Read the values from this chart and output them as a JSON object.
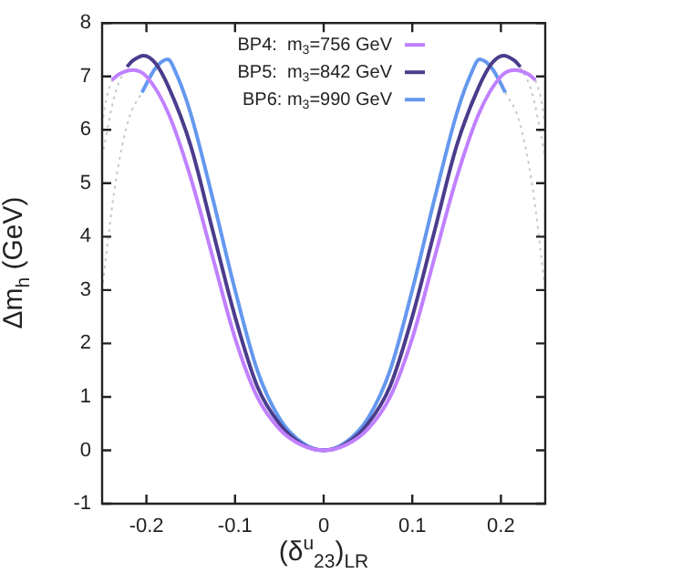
{
  "chart_data": {
    "type": "line",
    "xlabel": "(δ$^{u}$$_{23}$)$_{LR}$",
    "ylabel": "Δm$_{h}$ (GeV)",
    "xlim": [
      -0.25,
      0.25
    ],
    "xticks": [
      -0.2,
      -0.1,
      0,
      0.1,
      0.2
    ],
    "ylim": [
      -1,
      8
    ],
    "yticks": [
      -1,
      0,
      1,
      2,
      3,
      4,
      5,
      6,
      7,
      8
    ],
    "grid": false,
    "legend": "top right",
    "marker": "none",
    "line_style": "solid",
    "series": [
      {
        "name": "BP4:  m$_{3}$=756 GeV",
        "color": "#c080ff",
        "x": [
          -0.239,
          -0.23,
          -0.215,
          -0.2,
          -0.175,
          -0.15,
          -0.125,
          -0.1,
          -0.075,
          -0.05,
          -0.025,
          0,
          0.025,
          0.05,
          0.075,
          0.1,
          0.125,
          0.15,
          0.175,
          0.2,
          0.215,
          0.23,
          0.239
        ],
        "values": [
          6.93,
          7.05,
          7.12,
          7.0,
          6.3,
          5.1,
          3.6,
          2.1,
          1.0,
          0.4,
          0.1,
          0,
          0.1,
          0.4,
          1.0,
          2.1,
          3.6,
          5.1,
          6.3,
          7.0,
          7.12,
          7.05,
          6.93
        ]
      },
      {
        "name": "BP5:  m$_{3}$=842 GeV",
        "color": "#4b3c8c",
        "x": [
          -0.222,
          -0.215,
          -0.203,
          -0.19,
          -0.175,
          -0.15,
          -0.125,
          -0.1,
          -0.075,
          -0.05,
          -0.025,
          0,
          0.025,
          0.05,
          0.075,
          0.1,
          0.125,
          0.15,
          0.175,
          0.19,
          0.203,
          0.215,
          0.222
        ],
        "values": [
          7.18,
          7.3,
          7.39,
          7.25,
          6.8,
          5.7,
          4.1,
          2.5,
          1.2,
          0.5,
          0.12,
          0,
          0.12,
          0.5,
          1.2,
          2.5,
          4.1,
          5.7,
          6.8,
          7.25,
          7.39,
          7.3,
          7.18
        ]
      },
      {
        "name": "BP6: m$_{3}$=990 GeV",
        "color": "#6498ee",
        "x": [
          -0.205,
          -0.19,
          -0.176,
          -0.165,
          -0.15,
          -0.125,
          -0.1,
          -0.075,
          -0.05,
          -0.025,
          0,
          0.025,
          0.05,
          0.075,
          0.1,
          0.125,
          0.15,
          0.165,
          0.176,
          0.19,
          0.205
        ],
        "values": [
          6.7,
          7.15,
          7.32,
          7.0,
          6.3,
          4.7,
          3.0,
          1.5,
          0.6,
          0.15,
          0,
          0.15,
          0.6,
          1.5,
          3.0,
          4.7,
          6.3,
          7.0,
          7.32,
          7.15,
          6.7
        ]
      },
      {
        "color": "#c8c8c8",
        "line_style": "dotted",
        "x": [
          -0.25,
          -0.245,
          -0.239,
          0,
          0.239,
          0.245,
          0.25
        ],
        "values": [
          6.1,
          6.6,
          6.93,
          null,
          6.93,
          6.6,
          6.1
        ]
      },
      {
        "color": "#c8c8c8",
        "line_style": "dotted",
        "x": [
          -0.25,
          -0.235,
          -0.222,
          0,
          0.222,
          0.235,
          0.25
        ],
        "values": [
          5.5,
          6.7,
          7.18,
          null,
          7.18,
          6.7,
          5.5
        ]
      },
      {
        "color": "#c8c8c8",
        "line_style": "dotted",
        "x": [
          -0.25,
          -0.235,
          -0.22,
          -0.205,
          0,
          0.205,
          0.22,
          0.235,
          0.25
        ],
        "values": [
          3.0,
          5.0,
          6.2,
          6.7,
          null,
          6.7,
          6.2,
          5.0,
          3.0
        ]
      }
    ]
  }
}
